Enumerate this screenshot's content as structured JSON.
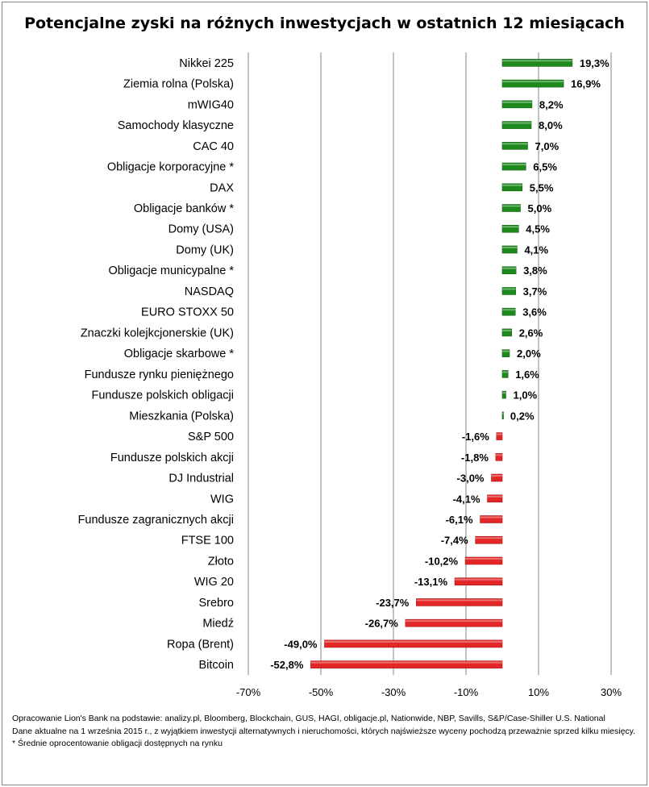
{
  "chart_data": {
    "type": "bar",
    "orientation": "horizontal",
    "title": "Potencjalne zyski na różnych inwestycjach w ostatnich 12 miesiącach",
    "xlabel": "",
    "ylabel": "",
    "xlim": [
      -70,
      30
    ],
    "x_ticks": [
      "-70%",
      "-50%",
      "-30%",
      "-10%",
      "10%",
      "30%"
    ],
    "x_tick_values": [
      -70,
      -50,
      -30,
      -10,
      10,
      30
    ],
    "grid": "vertical",
    "colors": {
      "positive": "#1e8a1e",
      "negative": "#e32626",
      "gridline": "#868686"
    },
    "categories": [
      "Nikkei 225",
      "Ziemia rolna (Polska)",
      "mWIG40",
      "Samochody klasyczne",
      "CAC 40",
      "Obligacje korporacyjne *",
      "DAX",
      "Obligacje banków *",
      "Domy (USA)",
      "Domy (UK)",
      "Obligacje municypalne *",
      "NASDAQ",
      "EURO STOXX 50",
      "Znaczki kolejkcjonerskie (UK)",
      "Obligacje skarbowe *",
      "Fundusze rynku pieniężnego",
      "Fundusze polskich obligacji",
      "Mieszkania (Polska)",
      "S&P 500",
      "Fundusze polskich akcji",
      "DJ Industrial",
      "WIG",
      "Fundusze zagranicznych akcji",
      "FTSE 100",
      "Złoto",
      "WIG 20",
      "Srebro",
      "Miedź",
      "Ropa (Brent)",
      "Bitcoin"
    ],
    "values": [
      19.3,
      16.9,
      8.2,
      8.0,
      7.0,
      6.5,
      5.5,
      5.0,
      4.5,
      4.1,
      3.8,
      3.7,
      3.6,
      2.6,
      2.0,
      1.6,
      1.0,
      0.2,
      -1.6,
      -1.8,
      -3.0,
      -4.1,
      -6.1,
      -7.4,
      -10.2,
      -13.1,
      -23.7,
      -26.7,
      -49.0,
      -52.8
    ],
    "data_labels": [
      "19,3%",
      "16,9%",
      "8,2%",
      "8,0%",
      "7,0%",
      "6,5%",
      "5,5%",
      "5,0%",
      "4,5%",
      "4,1%",
      "3,8%",
      "3,7%",
      "3,6%",
      "2,6%",
      "2,0%",
      "1,6%",
      "1,0%",
      "0,2%",
      "-1,6%",
      "-1,8%",
      "-3,0%",
      "-4,1%",
      "-6,1%",
      "-7,4%",
      "-10,2%",
      "-13,1%",
      "-23,7%",
      "-26,7%",
      "-49,0%",
      "-52,8%"
    ]
  },
  "footer": {
    "source": "Opracowanie Lion's Bank na podstawie: analizy.pl, Bloomberg, Blockchain, GUS, HAGI, obligacje.pl, Nationwide, NBP, Savills, S&P/Case-Shiller U.S. National",
    "date_note": "Dane aktualne na 1 września 2015 r., z wyjątkiem inwestycji alternatywnych i nieruchomości, których najświeższe wyceny pochodzą przeważnie sprzed kilku miesięcy.",
    "footnote": "* Średnie oprocentowanie obligacji dostępnych na rynku"
  }
}
